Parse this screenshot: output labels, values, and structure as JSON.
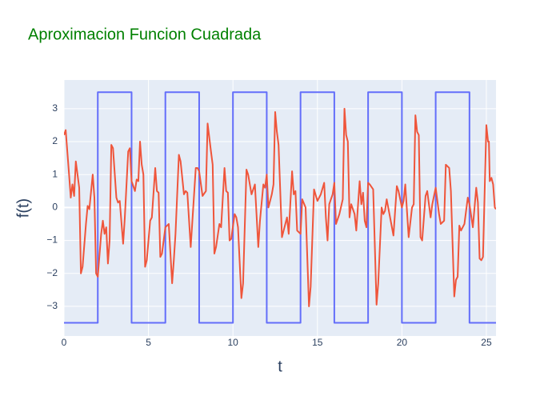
{
  "chart_data": {
    "type": "line",
    "title": "Aproximacion Funcion Cuadrada",
    "x_label": "t",
    "y_label": "f(t)",
    "xlim": [
      0,
      25.57
    ],
    "ylim": [
      -3.9,
      3.87
    ],
    "xticks": [
      0,
      5,
      10,
      15,
      20,
      25
    ],
    "yticks": [
      {
        "value": -3,
        "label": "−3"
      },
      {
        "value": -2,
        "label": "−2"
      },
      {
        "value": -1,
        "label": "−1"
      },
      0,
      1,
      2,
      3
    ],
    "grid": true,
    "series": [
      {
        "color": "#636efa",
        "x": [
          0,
          2,
          2,
          4,
          4,
          6,
          6,
          8,
          8,
          10,
          10,
          12,
          12,
          14,
          14,
          16,
          16,
          18,
          18,
          20,
          20,
          22,
          22,
          24,
          24,
          25.57
        ],
        "values": [
          -3.5,
          -3.5,
          3.5,
          3.5,
          -3.5,
          -3.5,
          3.5,
          3.5,
          -3.5,
          -3.5,
          3.5,
          3.5,
          -3.5,
          -3.5,
          3.5,
          3.5,
          -3.5,
          -3.5,
          3.5,
          3.5,
          -3.5,
          -3.5,
          3.5,
          3.5,
          -3.5,
          -3.5
        ]
      },
      {
        "color": "#ef553b",
        "x": [
          0,
          0.1,
          0.3,
          0.4,
          0.5,
          0.6,
          0.7,
          0.9,
          1.0,
          1.1,
          1.3,
          1.4,
          1.5,
          1.7,
          1.8,
          1.9,
          2.0,
          2.2,
          2.3,
          2.4,
          2.5,
          2.6,
          2.7,
          2.8,
          2.9,
          3.1,
          3.2,
          3.3,
          3.5,
          3.6,
          3.8,
          3.9,
          4.0,
          4.2,
          4.3,
          4.4,
          4.5,
          4.6,
          4.7,
          4.8,
          4.9,
          5.1,
          5.2,
          5.4,
          5.5,
          5.6,
          5.7,
          5.8,
          6.0,
          6.2,
          6.4,
          6.5,
          6.6,
          6.8,
          6.9,
          7.1,
          7.2,
          7.3,
          7.5,
          7.6,
          7.8,
          7.9,
          8.0,
          8.2,
          8.4,
          8.5,
          8.7,
          8.8,
          8.9,
          9.0,
          9.2,
          9.3,
          9.5,
          9.6,
          9.7,
          9.8,
          9.9,
          10.1,
          10.2,
          10.3,
          10.5,
          10.6,
          10.8,
          10.9,
          11.1,
          11.3,
          11.5,
          11.6,
          11.8,
          11.9,
          12.0,
          12.1,
          12.3,
          12.4,
          12.5,
          12.6,
          12.7,
          12.9,
          13.0,
          13.2,
          13.3,
          13.5,
          13.6,
          13.7,
          13.8,
          14.0,
          14.1,
          14.3,
          14.5,
          14.6,
          14.8,
          15.0,
          15.2,
          15.4,
          15.5,
          15.6,
          15.7,
          15.9,
          16.0,
          16.1,
          16.3,
          16.5,
          16.6,
          16.7,
          16.8,
          16.9,
          17.0,
          17.2,
          17.3,
          17.5,
          17.6,
          17.7,
          17.8,
          17.9,
          18.0,
          18.1,
          18.3,
          18.5,
          18.6,
          18.8,
          18.9,
          19.0,
          19.1,
          19.3,
          19.5,
          19.7,
          19.8,
          20.0,
          20.1,
          20.2,
          20.4,
          20.6,
          20.7,
          20.8,
          20.9,
          21.0,
          21.1,
          21.2,
          21.4,
          21.5,
          21.7,
          21.8,
          22.0,
          22.2,
          22.3,
          22.5,
          22.6,
          22.8,
          22.9,
          23.1,
          23.2,
          23.3,
          23.4,
          23.5,
          23.7,
          23.9,
          24.0,
          24.2,
          24.4,
          24.5,
          24.6,
          24.7,
          24.8,
          25.0,
          25.1,
          25.15,
          25.2,
          25.3,
          25.4,
          25.5,
          25.57
        ],
        "values": [
          2.2,
          2.35,
          1.0,
          0.3,
          0.7,
          0.35,
          1.4,
          0.6,
          -2.0,
          -1.8,
          -0.5,
          0.05,
          -0.05,
          1.0,
          0.3,
          -2.0,
          -2.1,
          -0.8,
          -0.4,
          -0.8,
          -0.6,
          -1.7,
          -1.0,
          1.9,
          1.8,
          0.3,
          0.15,
          0.2,
          -1.1,
          -0.3,
          1.7,
          1.8,
          0.8,
          0.5,
          0.85,
          0.8,
          2.0,
          1.3,
          1.0,
          -1.8,
          -1.6,
          -0.4,
          -0.3,
          1.2,
          0.5,
          0.45,
          -1.5,
          -1.4,
          -0.6,
          -0.5,
          -2.3,
          -1.6,
          -0.8,
          1.6,
          1.4,
          0.4,
          0.5,
          0.45,
          -1.2,
          -0.4,
          1.2,
          1.2,
          1.1,
          0.35,
          0.5,
          2.55,
          1.7,
          1.3,
          -1.4,
          -1.2,
          -0.5,
          -0.6,
          1.2,
          0.5,
          0.45,
          -1.0,
          -0.95,
          -0.2,
          -0.3,
          -0.6,
          -2.75,
          -2.3,
          1.15,
          1.0,
          0.4,
          0.7,
          -1.2,
          -0.4,
          0.7,
          0.6,
          1.0,
          0,
          0.4,
          0.7,
          2.9,
          2.3,
          1.9,
          -0.9,
          -0.7,
          -0.3,
          -0.8,
          1.1,
          0.4,
          0.5,
          -0.7,
          -0.8,
          0.25,
          0,
          -3.0,
          -2.4,
          0.55,
          0.2,
          0.4,
          0.75,
          -0.3,
          -1.0,
          0.1,
          0.4,
          0.75,
          -0.5,
          -0.2,
          0.25,
          3.0,
          2.2,
          2.0,
          -0.3,
          0.1,
          -0.2,
          -0.7,
          0.8,
          0.1,
          0.45,
          -0.4,
          -0.6,
          0.75,
          0.7,
          0.55,
          -2.95,
          -2.3,
          0,
          -0.2,
          -0.1,
          0.25,
          -0.3,
          -0.85,
          0.65,
          0.5,
          0,
          0.2,
          0.7,
          -0.9,
          0,
          0.1,
          2.8,
          2.3,
          2.2,
          -0.9,
          -1.0,
          0.35,
          0.5,
          -0.3,
          0.1,
          0.6,
          -0.2,
          -0.5,
          -0.4,
          1.3,
          1.2,
          0.5,
          -2.7,
          -2.2,
          -2.1,
          -0.55,
          -0.7,
          -0.5,
          0.3,
          0.1,
          -0.6,
          0.6,
          0.15,
          -1.55,
          -1.6,
          -1.5,
          2.5,
          2.0,
          2.0,
          0.8,
          0.9,
          0.7,
          0,
          -0.05
        ]
      }
    ]
  }
}
